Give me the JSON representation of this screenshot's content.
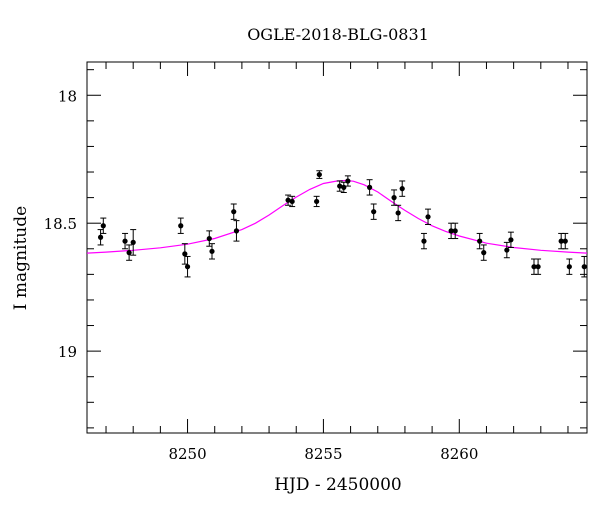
{
  "chart_data": {
    "type": "scatter",
    "title": "OGLE-2018-BLG-0831",
    "xlabel": "HJD - 2450000",
    "ylabel": "I magnitude",
    "xlim": [
      8246.3,
      8264.7
    ],
    "ylim": [
      19.32,
      17.87
    ],
    "y_inverted": true,
    "grid": false,
    "legend": "none",
    "x_ticks": [
      8250,
      8255,
      8260
    ],
    "y_ticks": [
      18,
      18.5,
      19
    ],
    "x_tick_labels": [
      "8250",
      "8255",
      "8260"
    ],
    "y_tick_labels": [
      "18",
      "18.5",
      "19"
    ],
    "colors": {
      "model": "#ff00ff",
      "points": "#000000",
      "axes": "#000000"
    },
    "series": [
      {
        "type": "scatter_errorbar",
        "x": [
          8246.8,
          8246.9,
          8247.7,
          8247.85,
          8248.0,
          8249.75,
          8249.9,
          8250.0,
          8250.8,
          8250.9,
          8251.7,
          8251.8,
          8253.7,
          8253.85,
          8254.75,
          8254.85,
          8255.6,
          8255.75,
          8255.9,
          8256.7,
          8256.85,
          8257.6,
          8257.75,
          8257.9,
          8258.7,
          8258.85,
          8259.7,
          8259.85,
          8260.75,
          8260.9,
          8261.75,
          8261.9,
          8262.75,
          8262.9,
          8263.75,
          8263.9,
          8264.05,
          8264.6
        ],
        "y": [
          18.555,
          18.51,
          18.57,
          18.615,
          18.575,
          18.51,
          18.62,
          18.67,
          18.56,
          18.61,
          18.455,
          18.53,
          18.41,
          18.415,
          18.415,
          18.31,
          18.355,
          18.36,
          18.335,
          18.36,
          18.455,
          18.4,
          18.46,
          18.365,
          18.57,
          18.475,
          18.53,
          18.53,
          18.57,
          18.615,
          18.605,
          18.565,
          18.67,
          18.67,
          18.57,
          18.57,
          18.67,
          18.67
        ],
        "err": [
          0.03,
          0.03,
          0.03,
          0.03,
          0.05,
          0.03,
          0.04,
          0.04,
          0.03,
          0.03,
          0.03,
          0.04,
          0.02,
          0.02,
          0.02,
          0.015,
          0.02,
          0.02,
          0.02,
          0.03,
          0.03,
          0.03,
          0.03,
          0.03,
          0.03,
          0.03,
          0.03,
          0.03,
          0.03,
          0.03,
          0.03,
          0.03,
          0.03,
          0.03,
          0.03,
          0.03,
          0.03,
          0.04
        ]
      },
      {
        "type": "line",
        "x": [
          8246.3,
          8247,
          8248,
          8249,
          8250,
          8251,
          8252,
          8252.5,
          8253,
          8253.5,
          8254,
          8254.5,
          8255,
          8255.5,
          8255.8,
          8256.1,
          8256.5,
          8257,
          8257.5,
          8258,
          8258.5,
          8259,
          8259.5,
          8260,
          8261,
          8262,
          8263,
          8264,
          8264.7
        ],
        "y": [
          18.617,
          18.613,
          18.606,
          18.596,
          18.582,
          18.56,
          18.525,
          18.5,
          18.468,
          18.432,
          18.398,
          18.368,
          18.345,
          18.335,
          18.333,
          18.336,
          18.35,
          18.378,
          18.415,
          18.45,
          18.482,
          18.51,
          18.532,
          18.55,
          18.578,
          18.595,
          18.606,
          18.613,
          18.617
        ]
      }
    ]
  }
}
